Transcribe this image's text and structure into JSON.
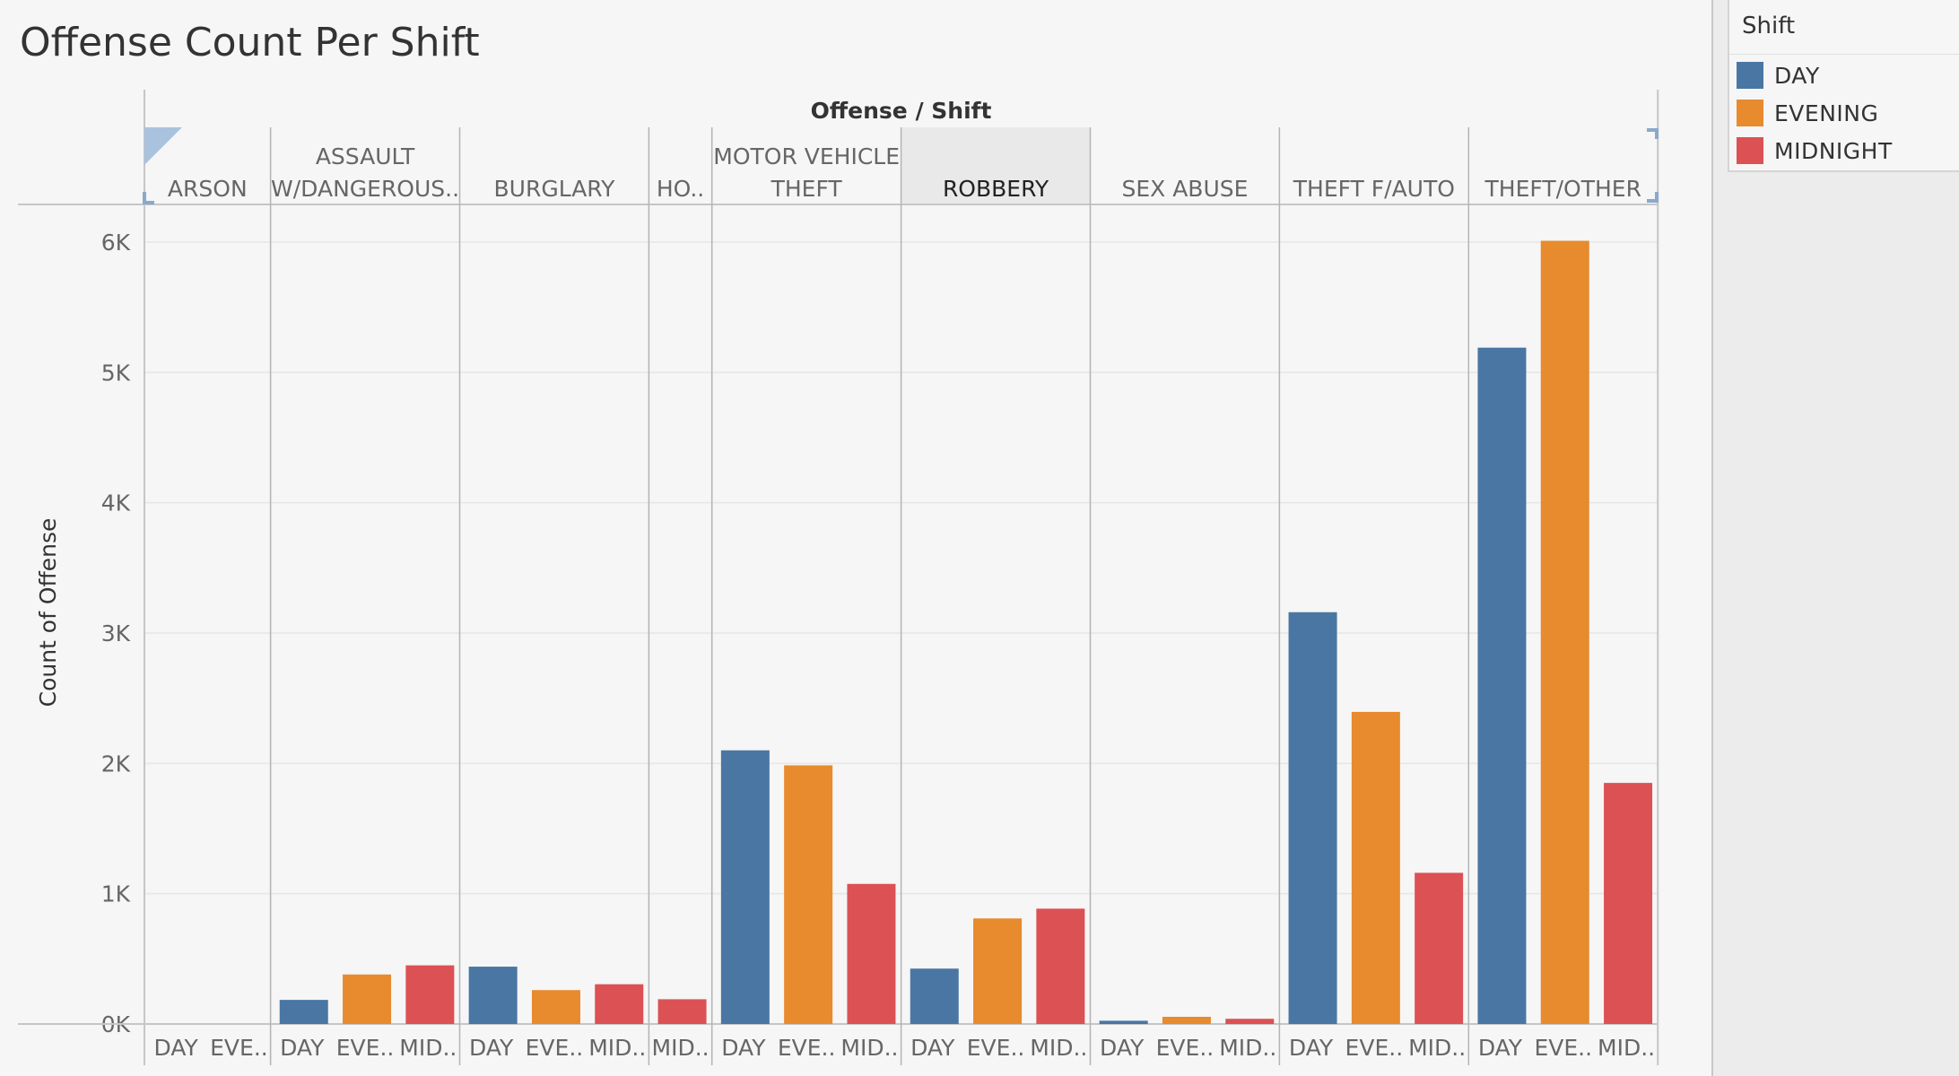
{
  "title": "Offense Count Per Shift",
  "legend": {
    "title": "Shift",
    "items": [
      {
        "label": "DAY",
        "color": "#4a76a4"
      },
      {
        "label": "EVENING",
        "color": "#e88a2e"
      },
      {
        "label": "MIDNIGHT",
        "color": "#dc5154"
      }
    ]
  },
  "chart_data": {
    "type": "bar",
    "title": "Offense Count Per Shift",
    "header_label": "Offense / Shift",
    "ylabel": "Count of Offense",
    "ylim": [
      0,
      6000
    ],
    "yticks": [
      0,
      1000,
      2000,
      3000,
      4000,
      5000,
      6000
    ],
    "ytick_labels": [
      "0K",
      "1K",
      "2K",
      "3K",
      "4K",
      "5K",
      "6K"
    ],
    "grid": true,
    "legend_placement": "top-right",
    "highlighted_group": "ROBBERY",
    "groups": [
      {
        "name": [
          "ARSON"
        ],
        "bars": [
          {
            "shift": "DAY",
            "label": "DAY",
            "value": 0
          },
          {
            "shift": "EVENING",
            "label": "EVE..",
            "value": 0
          }
        ]
      },
      {
        "name": [
          "ASSAULT",
          "W/DANGEROUS.."
        ],
        "bars": [
          {
            "shift": "DAY",
            "label": "DAY",
            "value": 185
          },
          {
            "shift": "EVENING",
            "label": "EVE..",
            "value": 380
          },
          {
            "shift": "MIDNIGHT",
            "label": "MID..",
            "value": 450
          }
        ]
      },
      {
        "name": [
          "BURGLARY"
        ],
        "bars": [
          {
            "shift": "DAY",
            "label": "DAY",
            "value": 440
          },
          {
            "shift": "EVENING",
            "label": "EVE..",
            "value": 260
          },
          {
            "shift": "MIDNIGHT",
            "label": "MID..",
            "value": 305
          }
        ]
      },
      {
        "name": [
          "HO.."
        ],
        "bars": [
          {
            "shift": "MIDNIGHT",
            "label": "MID..",
            "value": 190
          }
        ]
      },
      {
        "name": [
          "MOTOR VEHICLE",
          "THEFT"
        ],
        "bars": [
          {
            "shift": "DAY",
            "label": "DAY",
            "value": 2100
          },
          {
            "shift": "EVENING",
            "label": "EVE..",
            "value": 1985
          },
          {
            "shift": "MIDNIGHT",
            "label": "MID..",
            "value": 1075
          }
        ]
      },
      {
        "name": [
          "ROBBERY"
        ],
        "bars": [
          {
            "shift": "DAY",
            "label": "DAY",
            "value": 425
          },
          {
            "shift": "EVENING",
            "label": "EVE..",
            "value": 810
          },
          {
            "shift": "MIDNIGHT",
            "label": "MID..",
            "value": 885
          }
        ]
      },
      {
        "name": [
          "SEX ABUSE"
        ],
        "bars": [
          {
            "shift": "DAY",
            "label": "DAY",
            "value": 25
          },
          {
            "shift": "EVENING",
            "label": "EVE..",
            "value": 55
          },
          {
            "shift": "MIDNIGHT",
            "label": "MID..",
            "value": 40
          }
        ]
      },
      {
        "name": [
          "THEFT F/AUTO"
        ],
        "bars": [
          {
            "shift": "DAY",
            "label": "DAY",
            "value": 3160
          },
          {
            "shift": "EVENING",
            "label": "EVE..",
            "value": 2395
          },
          {
            "shift": "MIDNIGHT",
            "label": "MID..",
            "value": 1160
          }
        ]
      },
      {
        "name": [
          "THEFT/OTHER"
        ],
        "bars": [
          {
            "shift": "DAY",
            "label": "DAY",
            "value": 5190
          },
          {
            "shift": "EVENING",
            "label": "EVE..",
            "value": 6010
          },
          {
            "shift": "MIDNIGHT",
            "label": "MID..",
            "value": 1850
          }
        ]
      }
    ]
  }
}
